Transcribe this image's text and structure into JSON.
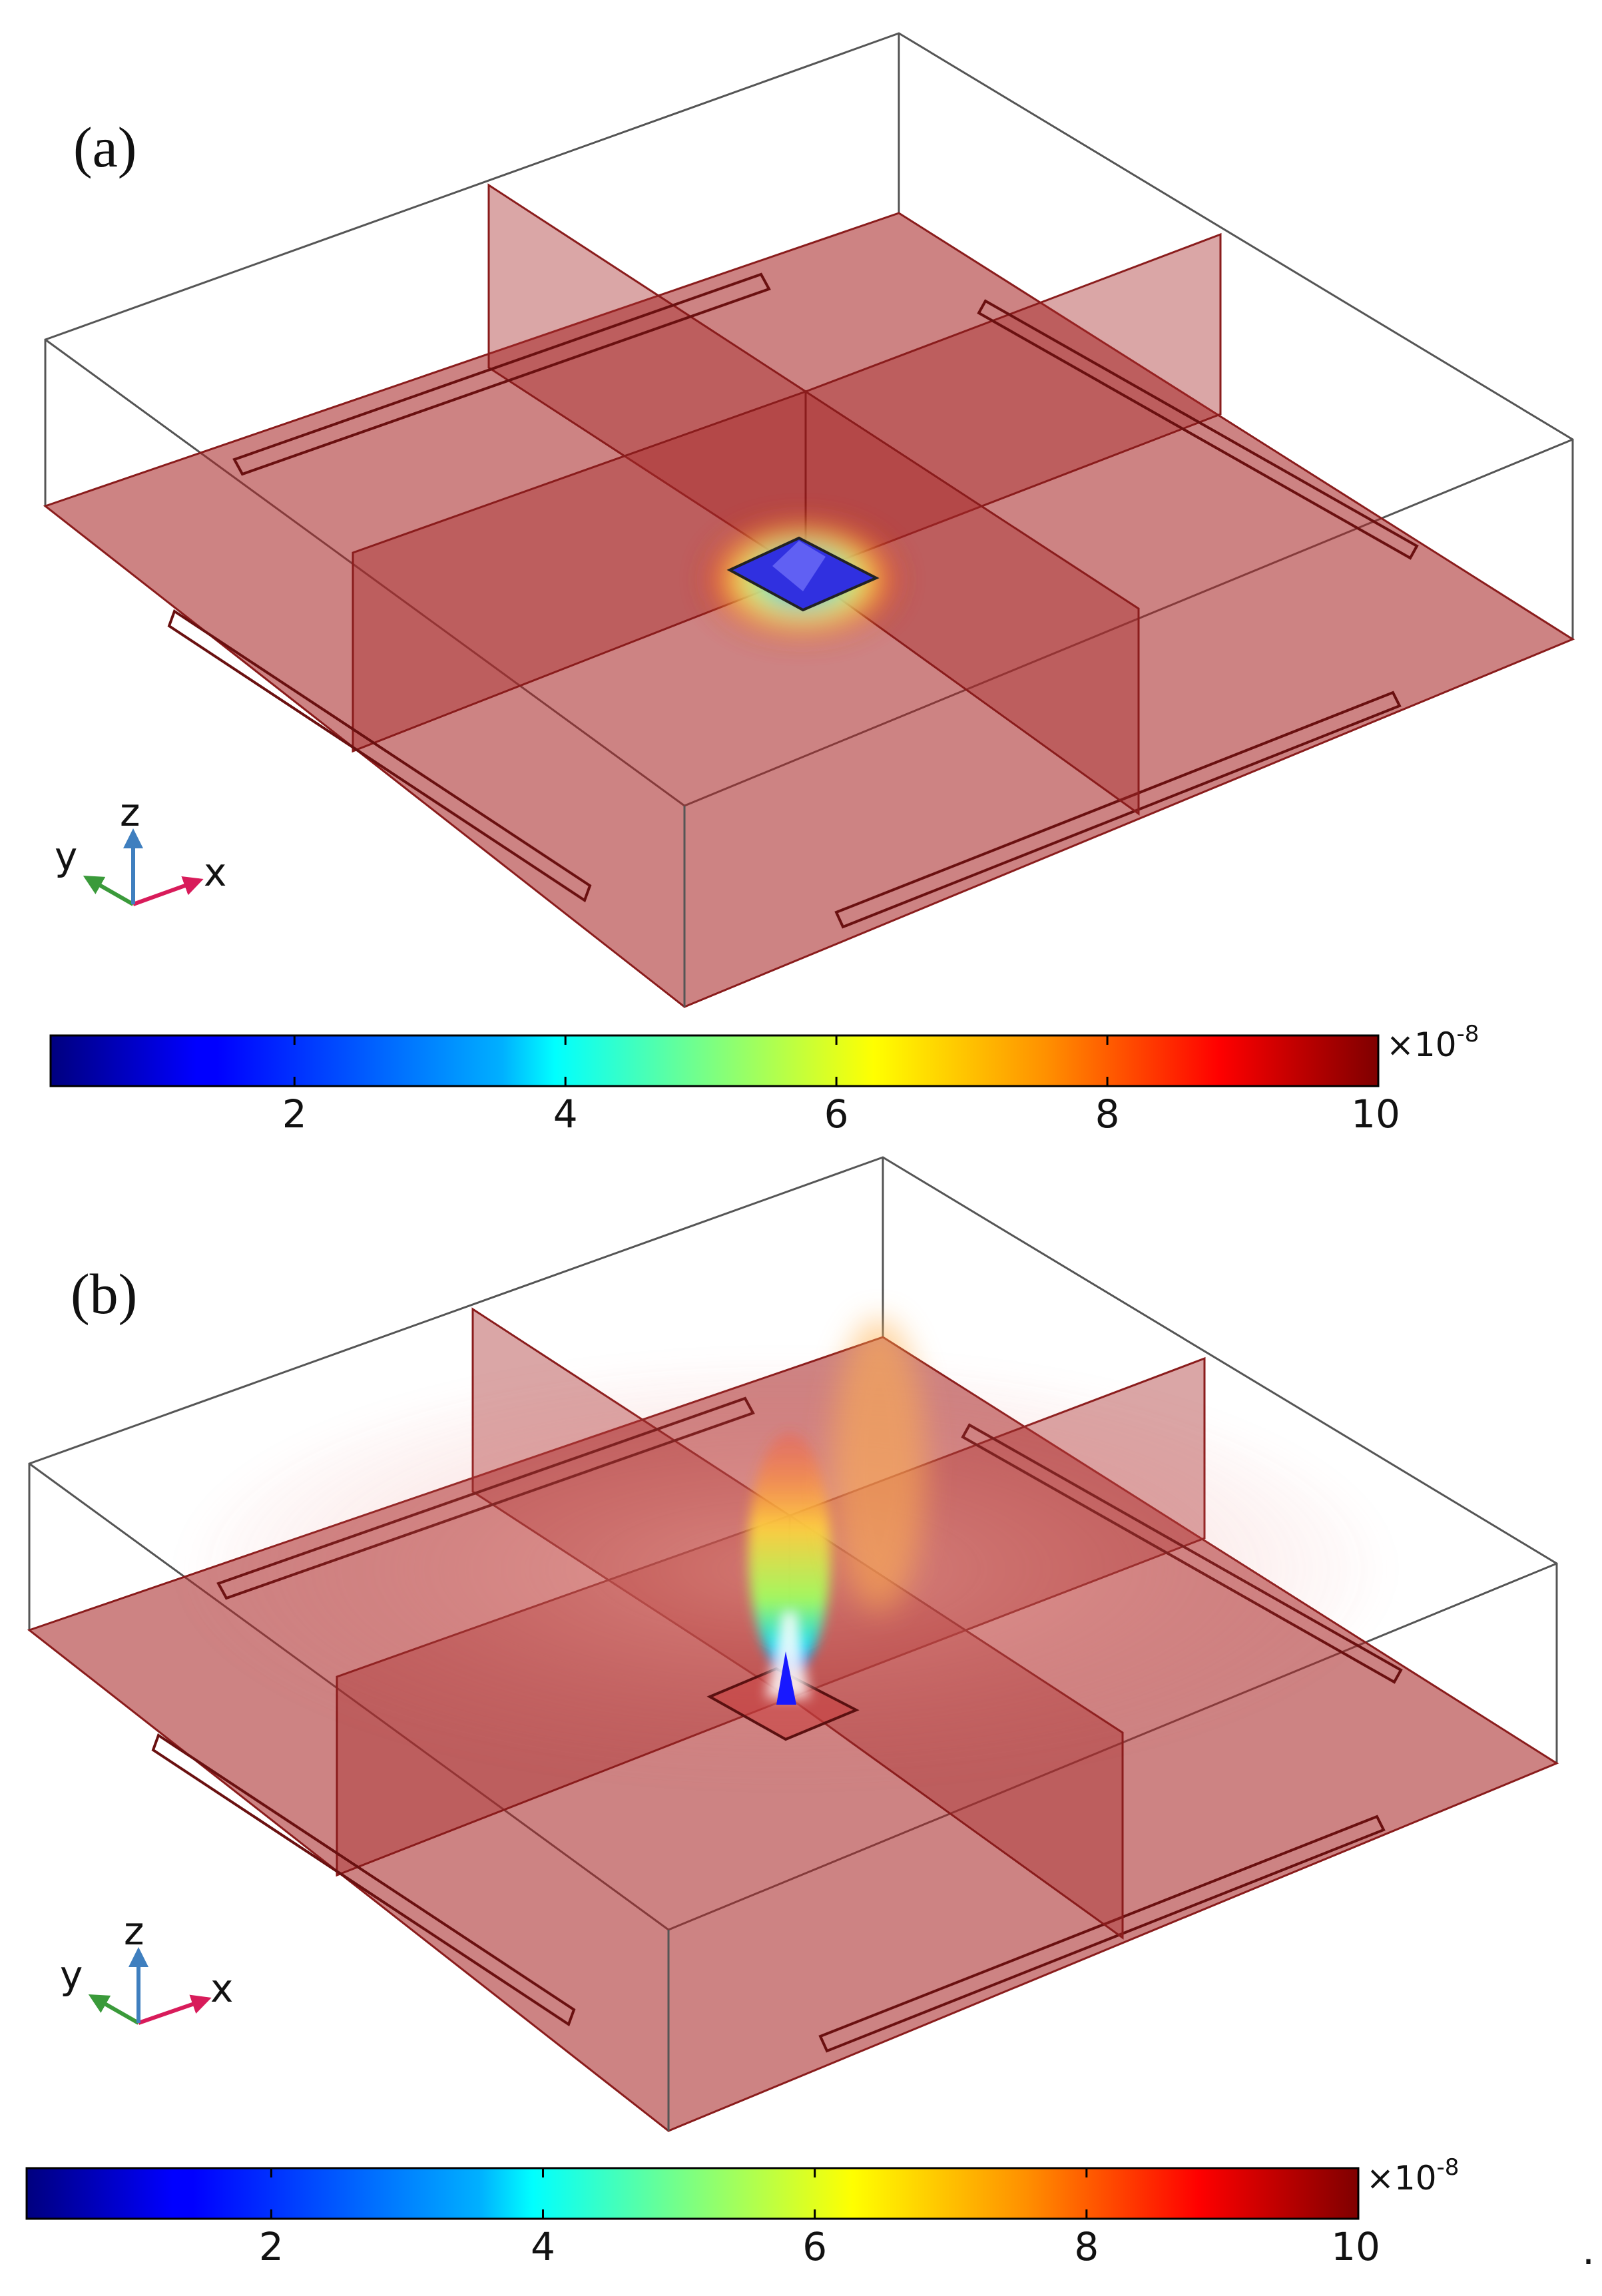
{
  "panels": [
    {
      "id": "a",
      "label": "(a)",
      "axes": {
        "x": "x",
        "y": "y",
        "z": "z"
      },
      "colorbar": {
        "ticks": [
          "2",
          "4",
          "6",
          "8",
          "10"
        ],
        "tick_values": [
          2,
          4,
          6,
          8,
          10
        ],
        "min": 0.2,
        "max": 10,
        "multiplier_base": "×10",
        "multiplier_exp": "-8"
      },
      "hotspot": "compact"
    },
    {
      "id": "b",
      "label": "(b)",
      "axes": {
        "x": "x",
        "y": "y",
        "z": "z"
      },
      "colorbar": {
        "ticks": [
          "2",
          "4",
          "6",
          "8",
          "10"
        ],
        "tick_values": [
          2,
          4,
          6,
          8,
          10
        ],
        "min": 0.2,
        "max": 10,
        "multiplier_base": "×10",
        "multiplier_exp": "-8"
      },
      "hotspot": "plume"
    }
  ],
  "trailing_mark": ".",
  "colors": {
    "slice_fill": "#a82a2a",
    "slice_edge": "#8a1c1c",
    "box_edge": "#555555",
    "axis_x": "#d81b5a",
    "axis_y": "#3a9a3a",
    "axis_z": "#3f7fbf"
  }
}
